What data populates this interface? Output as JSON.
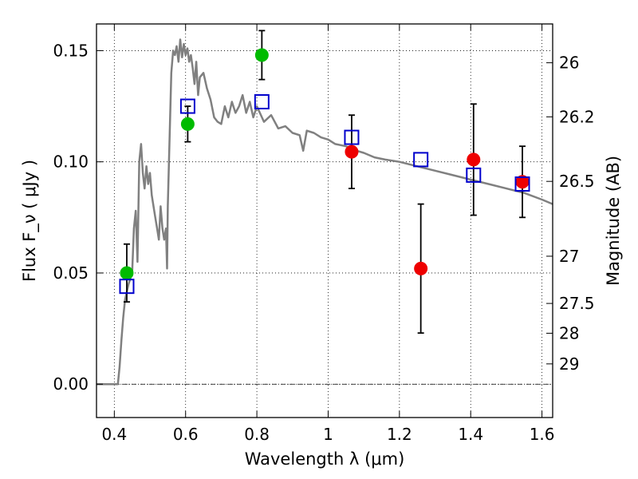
{
  "chart_data": {
    "type": "scatter",
    "xlabel": "Wavelength  λ (μm)",
    "ylabel": "Flux  F_ν  ( μJy )",
    "y2label": "Magnitude (AB)",
    "xlim": [
      0.35,
      1.63
    ],
    "ylim": [
      -0.015,
      0.162
    ],
    "grid": true,
    "xticks": [
      0.4,
      0.6,
      0.8,
      1.0,
      1.2,
      1.4,
      1.6
    ],
    "xtick_labels": [
      "0.4",
      "0.6",
      "0.8",
      "1",
      "1.2",
      "1.4",
      "1.6"
    ],
    "yticks": [
      0.0,
      0.05,
      0.1,
      0.15
    ],
    "ytick_labels": [
      "0.00",
      "0.05",
      "0.10",
      "0.15"
    ],
    "mag_ticks": [
      26,
      26.2,
      26.5,
      27,
      27.5,
      28,
      29
    ],
    "mag_tick_labels": [
      "26",
      "26.2",
      "26.5",
      "27",
      "27.5",
      "28",
      "29"
    ],
    "colors": {
      "sed": "#808080",
      "green": "#00bb00",
      "red": "#ee0000",
      "model": "#0000cc",
      "errorbar": "#000000"
    },
    "sed_curve": {
      "name": "",
      "x": [
        0.35,
        0.41,
        0.415,
        0.42,
        0.425,
        0.43,
        0.44,
        0.45,
        0.455,
        0.46,
        0.465,
        0.47,
        0.475,
        0.48,
        0.485,
        0.49,
        0.495,
        0.5,
        0.505,
        0.51,
        0.515,
        0.52,
        0.525,
        0.53,
        0.535,
        0.54,
        0.545,
        0.548,
        0.55,
        0.555,
        0.56,
        0.565,
        0.57,
        0.575,
        0.58,
        0.585,
        0.59,
        0.595,
        0.6,
        0.605,
        0.61,
        0.615,
        0.62,
        0.625,
        0.63,
        0.635,
        0.64,
        0.65,
        0.66,
        0.67,
        0.68,
        0.69,
        0.7,
        0.71,
        0.72,
        0.73,
        0.74,
        0.75,
        0.76,
        0.77,
        0.78,
        0.79,
        0.8,
        0.82,
        0.84,
        0.86,
        0.88,
        0.9,
        0.92,
        0.93,
        0.94,
        0.96,
        0.98,
        1.0,
        1.02,
        1.05,
        1.08,
        1.1,
        1.13,
        1.16,
        1.2,
        1.25,
        1.3,
        1.35,
        1.4,
        1.45,
        1.5,
        1.55,
        1.6,
        1.63
      ],
      "y": [
        0.0,
        0.0,
        0.008,
        0.02,
        0.03,
        0.038,
        0.045,
        0.05,
        0.07,
        0.078,
        0.055,
        0.1,
        0.108,
        0.095,
        0.088,
        0.098,
        0.09,
        0.095,
        0.085,
        0.08,
        0.075,
        0.07,
        0.065,
        0.08,
        0.07,
        0.065,
        0.07,
        0.052,
        0.08,
        0.11,
        0.14,
        0.15,
        0.148,
        0.152,
        0.145,
        0.155,
        0.147,
        0.153,
        0.148,
        0.151,
        0.145,
        0.148,
        0.142,
        0.135,
        0.145,
        0.13,
        0.138,
        0.14,
        0.133,
        0.128,
        0.12,
        0.118,
        0.117,
        0.125,
        0.12,
        0.127,
        0.122,
        0.125,
        0.13,
        0.122,
        0.127,
        0.12,
        0.125,
        0.118,
        0.121,
        0.115,
        0.116,
        0.113,
        0.112,
        0.105,
        0.114,
        0.113,
        0.111,
        0.11,
        0.108,
        0.107,
        0.105,
        0.104,
        0.102,
        0.101,
        0.1,
        0.098,
        0.096,
        0.094,
        0.092,
        0.09,
        0.088,
        0.086,
        0.083,
        0.081
      ]
    },
    "series": [
      {
        "color_key": "green",
        "marker": "circle",
        "points": [
          {
            "x": 0.435,
            "y": 0.05,
            "yerr": 0.013
          },
          {
            "x": 0.606,
            "y": 0.117,
            "yerr": 0.008
          },
          {
            "x": 0.814,
            "y": 0.148,
            "yerr": 0.011
          }
        ]
      },
      {
        "color_key": "red",
        "marker": "circle",
        "points": [
          {
            "x": 1.066,
            "y": 0.1045,
            "yerr": 0.0165
          },
          {
            "x": 1.26,
            "y": 0.052,
            "yerr": 0.029
          },
          {
            "x": 1.408,
            "y": 0.101,
            "yerr": 0.025
          },
          {
            "x": 1.545,
            "y": 0.091,
            "yerr": 0.016
          }
        ]
      },
      {
        "color_key": "model",
        "marker": "open-square",
        "points": [
          {
            "x": 0.435,
            "y": 0.044
          },
          {
            "x": 0.606,
            "y": 0.125
          },
          {
            "x": 0.814,
            "y": 0.127
          },
          {
            "x": 1.066,
            "y": 0.111
          },
          {
            "x": 1.26,
            "y": 0.101
          },
          {
            "x": 1.408,
            "y": 0.094
          },
          {
            "x": 1.545,
            "y": 0.09
          }
        ]
      }
    ]
  }
}
